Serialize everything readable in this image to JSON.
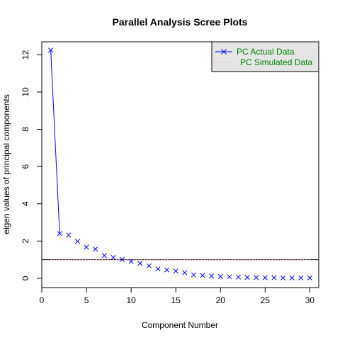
{
  "chart_data": {
    "type": "line",
    "title": "Parallel Analysis Scree Plots",
    "xlabel": "Component Number",
    "ylabel": "eigen values of principal components",
    "xlim": [
      0,
      31
    ],
    "ylim": [
      -0.5,
      12.7
    ],
    "x_ticks": [
      0,
      5,
      10,
      15,
      20,
      25,
      30
    ],
    "y_ticks": [
      0,
      2,
      4,
      6,
      8,
      10,
      12
    ],
    "grid": false,
    "legend_position": "top-right",
    "reference_line": {
      "y": 1,
      "color": "#000000"
    },
    "x": [
      1,
      2,
      3,
      4,
      5,
      6,
      7,
      8,
      9,
      10,
      11,
      12,
      13,
      14,
      15,
      16,
      17,
      18,
      19,
      20,
      21,
      22,
      23,
      24,
      25,
      26,
      27,
      28,
      29,
      30
    ],
    "series": [
      {
        "name": "PC  Actual Data",
        "marker": "x",
        "line_style": "solid",
        "line_segment_points": 2,
        "color": "#0000ff",
        "values": [
          12.25,
          2.4,
          2.32,
          1.98,
          1.67,
          1.57,
          1.22,
          1.12,
          1.01,
          0.91,
          0.8,
          0.67,
          0.5,
          0.45,
          0.39,
          0.3,
          0.18,
          0.15,
          0.12,
          0.1,
          0.08,
          0.06,
          0.05,
          0.04,
          0.03,
          0.03,
          0.02,
          0.02,
          0.02,
          0.02
        ]
      },
      {
        "name": "PC  Simulated Data",
        "marker": "none",
        "line_style": "dotted",
        "color": "#ff9999",
        "values": [
          1.0,
          1.0,
          1.0,
          1.0,
          1.0,
          1.0,
          1.0,
          1.0,
          1.0,
          1.0,
          1.0,
          1.0,
          1.0,
          1.0,
          1.0,
          1.0,
          1.0,
          1.0,
          1.0,
          1.0,
          1.0,
          1.0,
          1.0,
          1.0,
          1.0,
          1.0,
          1.0,
          1.0,
          1.0,
          1.0
        ]
      }
    ],
    "legend_text_color": "#008000",
    "legend_bg": "#e5e5e5"
  }
}
